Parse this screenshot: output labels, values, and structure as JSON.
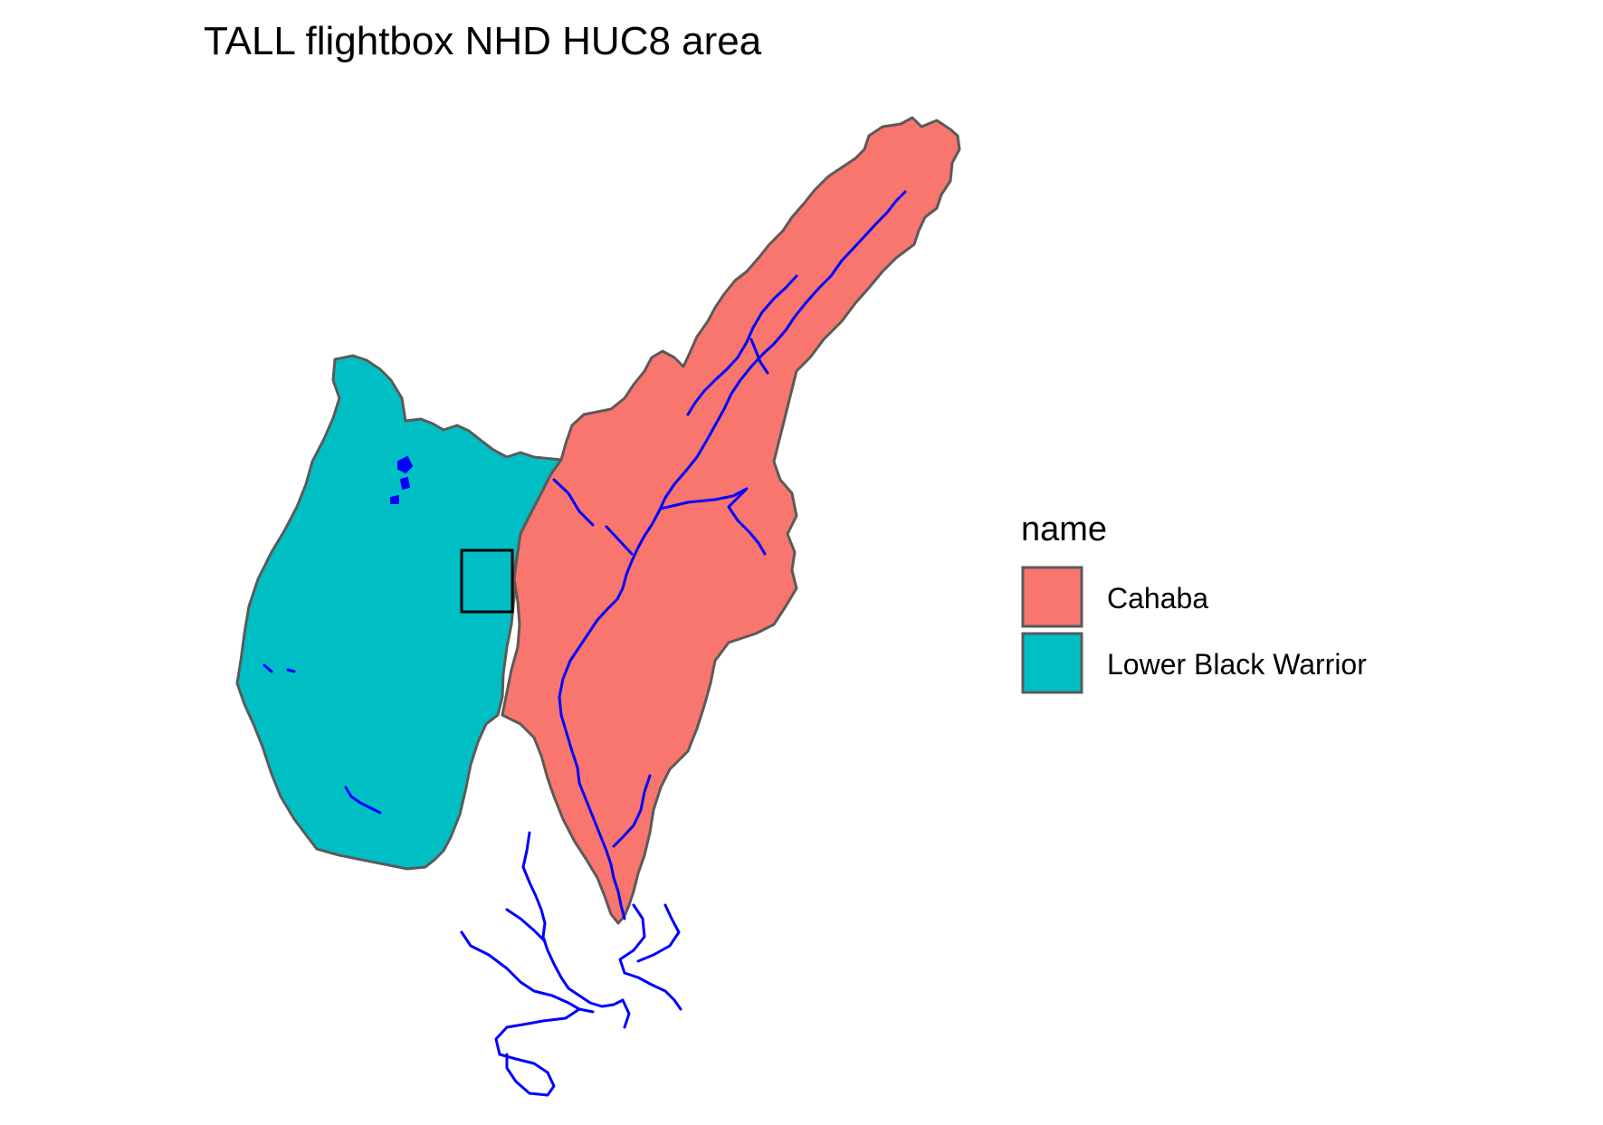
{
  "title": "TALL flightbox NHD HUC8 area",
  "legend": {
    "title": "name",
    "items": [
      {
        "label": "Cahaba",
        "color": "#F8766D"
      },
      {
        "label": "Lower Black Warrior",
        "color": "#00BFC4"
      }
    ]
  },
  "colors": {
    "river": "#0000FF",
    "boundary": "#5A5A5A",
    "flightbox": "#000000",
    "background": "#FFFFFF"
  }
}
